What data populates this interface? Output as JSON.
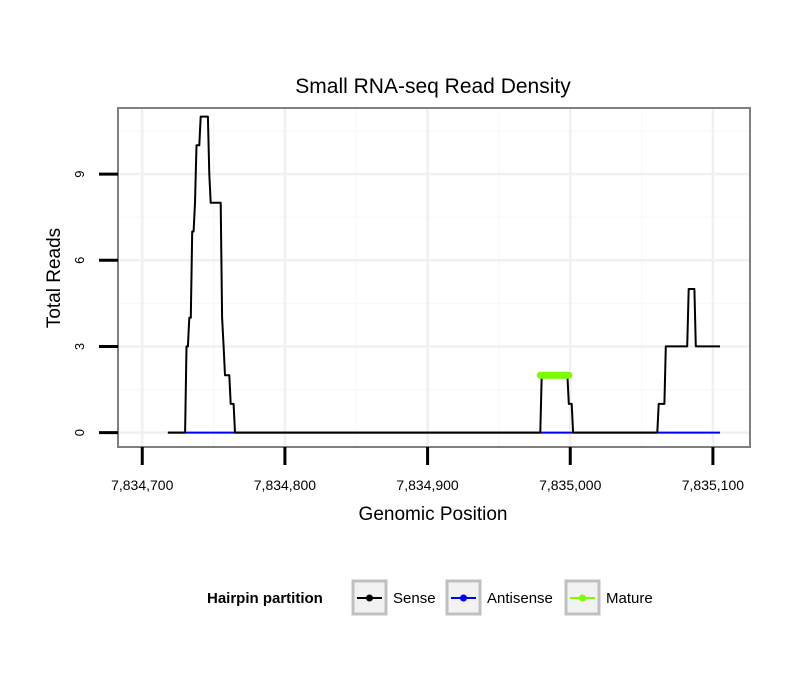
{
  "chart_data": {
    "type": "line",
    "title": "Small RNA-seq Read Density",
    "xlabel": "Genomic Position",
    "ylabel": "Total Reads",
    "xlim": [
      7834683,
      7835126
    ],
    "ylim": [
      -0.5,
      11.3
    ],
    "x_ticks": [
      {
        "value": 7834700,
        "label": "7,834,700"
      },
      {
        "value": 7834800,
        "label": "7,834,800"
      },
      {
        "value": 7834900,
        "label": "7,834,900"
      },
      {
        "value": 7835000,
        "label": "7,835,000"
      },
      {
        "value": 7835100,
        "label": "7,835,100"
      }
    ],
    "y_ticks": [
      {
        "value": 0,
        "label": "0"
      },
      {
        "value": 3,
        "label": "3"
      },
      {
        "value": 6,
        "label": "6"
      },
      {
        "value": 9,
        "label": "9"
      }
    ],
    "grid": true,
    "legend": {
      "title": "Hairpin partition",
      "position": "bottom"
    },
    "series": [
      {
        "name": "Sense",
        "color": "#000000",
        "points": [
          [
            7834718,
            0
          ],
          [
            7834730,
            0
          ],
          [
            7834731,
            3
          ],
          [
            7834732,
            3
          ],
          [
            7834733,
            4
          ],
          [
            7834734,
            4
          ],
          [
            7834735,
            7
          ],
          [
            7834736,
            7
          ],
          [
            7834737,
            8
          ],
          [
            7834738,
            10
          ],
          [
            7834740,
            10
          ],
          [
            7834741,
            11
          ],
          [
            7834746,
            11
          ],
          [
            7834747,
            9
          ],
          [
            7834748,
            8
          ],
          [
            7834755,
            8
          ],
          [
            7834756,
            4
          ],
          [
            7834757,
            3
          ],
          [
            7834758,
            2
          ],
          [
            7834761,
            2
          ],
          [
            7834762,
            1
          ],
          [
            7834764,
            1
          ],
          [
            7834765,
            0
          ],
          [
            7834979,
            0
          ],
          [
            7834980,
            2
          ],
          [
            7834998,
            2
          ],
          [
            7834999,
            1
          ],
          [
            7835001,
            1
          ],
          [
            7835002,
            0
          ],
          [
            7835061,
            0
          ],
          [
            7835062,
            1
          ],
          [
            7835066,
            1
          ],
          [
            7835067,
            3
          ],
          [
            7835082,
            3
          ],
          [
            7835083,
            5
          ],
          [
            7835087,
            5
          ],
          [
            7835088,
            3
          ],
          [
            7835105,
            3
          ]
        ]
      },
      {
        "name": "Antisense",
        "color": "#0000ff",
        "points": [
          [
            7834718,
            0
          ],
          [
            7835105,
            0
          ]
        ]
      },
      {
        "name": "Mature",
        "color": "#7cfc00",
        "points": [
          [
            7834979,
            2
          ],
          [
            7834999,
            2
          ]
        ]
      }
    ]
  }
}
